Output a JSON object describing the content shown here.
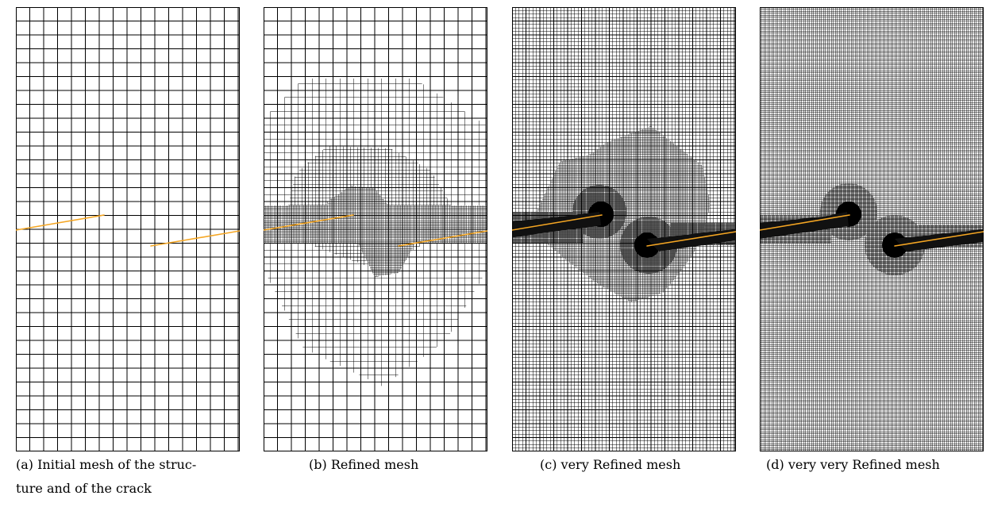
{
  "colors": {
    "mesh_line": "#000000",
    "crack": "#f5a623",
    "background": "#ffffff"
  },
  "panels": [
    {
      "id": "a",
      "caption": "(a) Initial mesh of the structure and of the crack",
      "caption_lines": [
        "(a) Initial mesh of the struc-",
        "ture and of the crack"
      ]
    },
    {
      "id": "b",
      "caption": "(b) Refined mesh"
    },
    {
      "id": "c",
      "caption": "(c) very Refined mesh"
    },
    {
      "id": "d",
      "caption": "(d) very very Refined mesh"
    }
  ]
}
